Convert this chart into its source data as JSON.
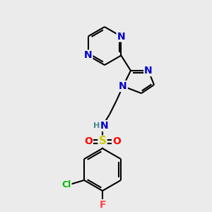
{
  "background_color": "#ebebeb",
  "bond_color": "#000000",
  "atom_colors": {
    "N": "#0000cc",
    "O": "#ff0000",
    "S": "#cccc00",
    "Cl": "#00bb00",
    "F": "#ff4444",
    "H": "#448888",
    "C": "#000000"
  },
  "font_size": 9,
  "figsize": [
    3.0,
    3.0
  ],
  "dpi": 100
}
